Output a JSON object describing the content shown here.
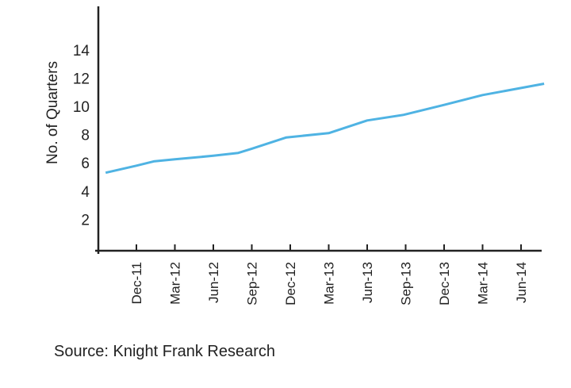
{
  "chart_data": {
    "type": "line",
    "title": "",
    "xlabel": "",
    "ylabel": "No. of Quarters",
    "ylim": [
      0,
      16
    ],
    "yticks": [
      2,
      4,
      6,
      8,
      10,
      12,
      14
    ],
    "xlim": [
      -0.8,
      10.6
    ],
    "categories": [
      "Dec-11",
      "Mar-12",
      "Jun-12",
      "Sep-12",
      "Dec-12",
      "Mar-13",
      "Jun-13",
      "Sep-13",
      "Dec-13",
      "Mar-14",
      "Jun-14"
    ],
    "grid": false,
    "series": [
      {
        "name": "No. of Quarters",
        "color": "#4fb3e3",
        "x": [
          -0.8,
          0,
          0.45,
          1,
          2,
          2.65,
          3,
          3.9,
          5,
          6,
          6.95,
          8,
          9,
          10,
          10.6
        ],
        "values": [
          5.3,
          5.8,
          6.1,
          6.25,
          6.5,
          6.7,
          7.0,
          7.8,
          8.1,
          9.0,
          9.4,
          10.1,
          10.8,
          11.3,
          11.6
        ]
      }
    ]
  },
  "source": "Source: Knight Frank Research"
}
